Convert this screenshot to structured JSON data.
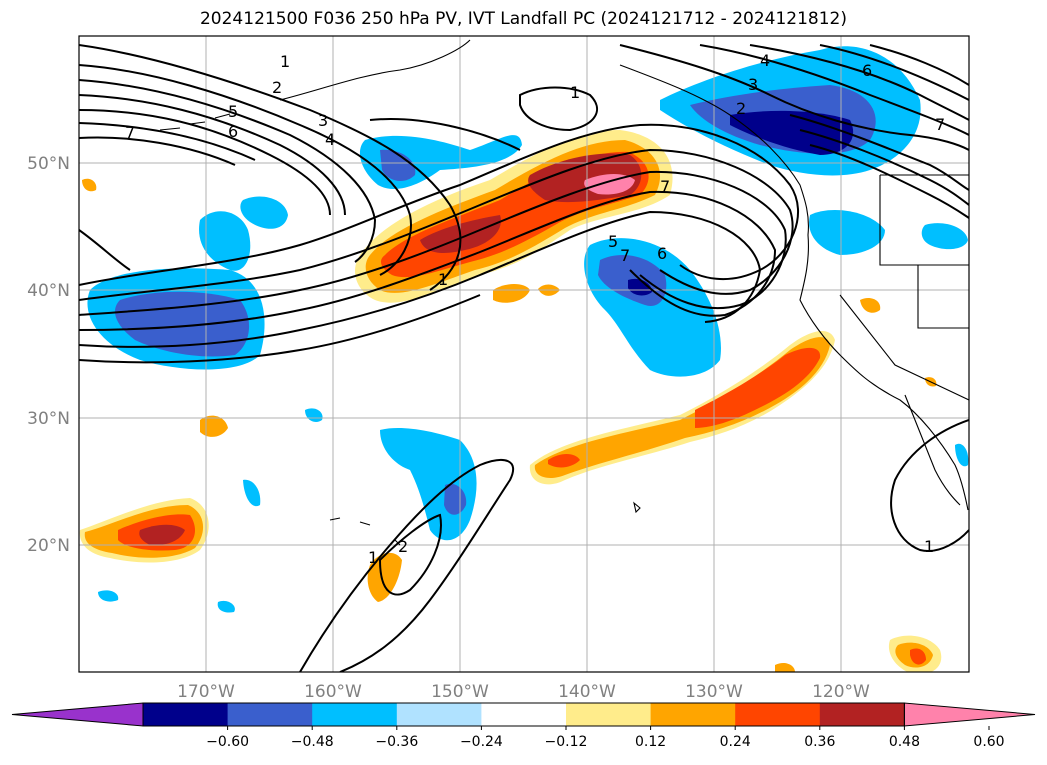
{
  "title": "2024121500 F036 250 hPa PV, IVT Landfall PC (2024121712 - 2024121812)",
  "axes": {
    "lon_ticks": [
      "170°W",
      "160°W",
      "150°W",
      "140°W",
      "130°W",
      "120°W"
    ],
    "lat_ticks": [
      "50°N",
      "40°N",
      "30°N",
      "20°N"
    ],
    "lon_range": [
      -180,
      -110
    ],
    "lat_range": [
      10,
      60
    ],
    "grid": true
  },
  "colorbar": {
    "ticks": [
      "−0.60",
      "−0.48",
      "−0.36",
      "−0.24",
      "−0.12",
      "0.12",
      "0.24",
      "0.36",
      "0.48",
      "0.60"
    ],
    "colors": [
      "#9932cc",
      "#00008b",
      "#3a5fcd",
      "#00bfff",
      "#b0e2ff",
      "#ffffff",
      "#ffec8b",
      "#ffa500",
      "#ff4500",
      "#b22222",
      "#ff82ab"
    ],
    "extend": "both"
  },
  "contour_labels": [
    "1",
    "2",
    "3",
    "4",
    "5",
    "6",
    "7"
  ],
  "colors": {
    "land": "#000000",
    "grid": "#b0b0b0",
    "contour": "#000000"
  }
}
